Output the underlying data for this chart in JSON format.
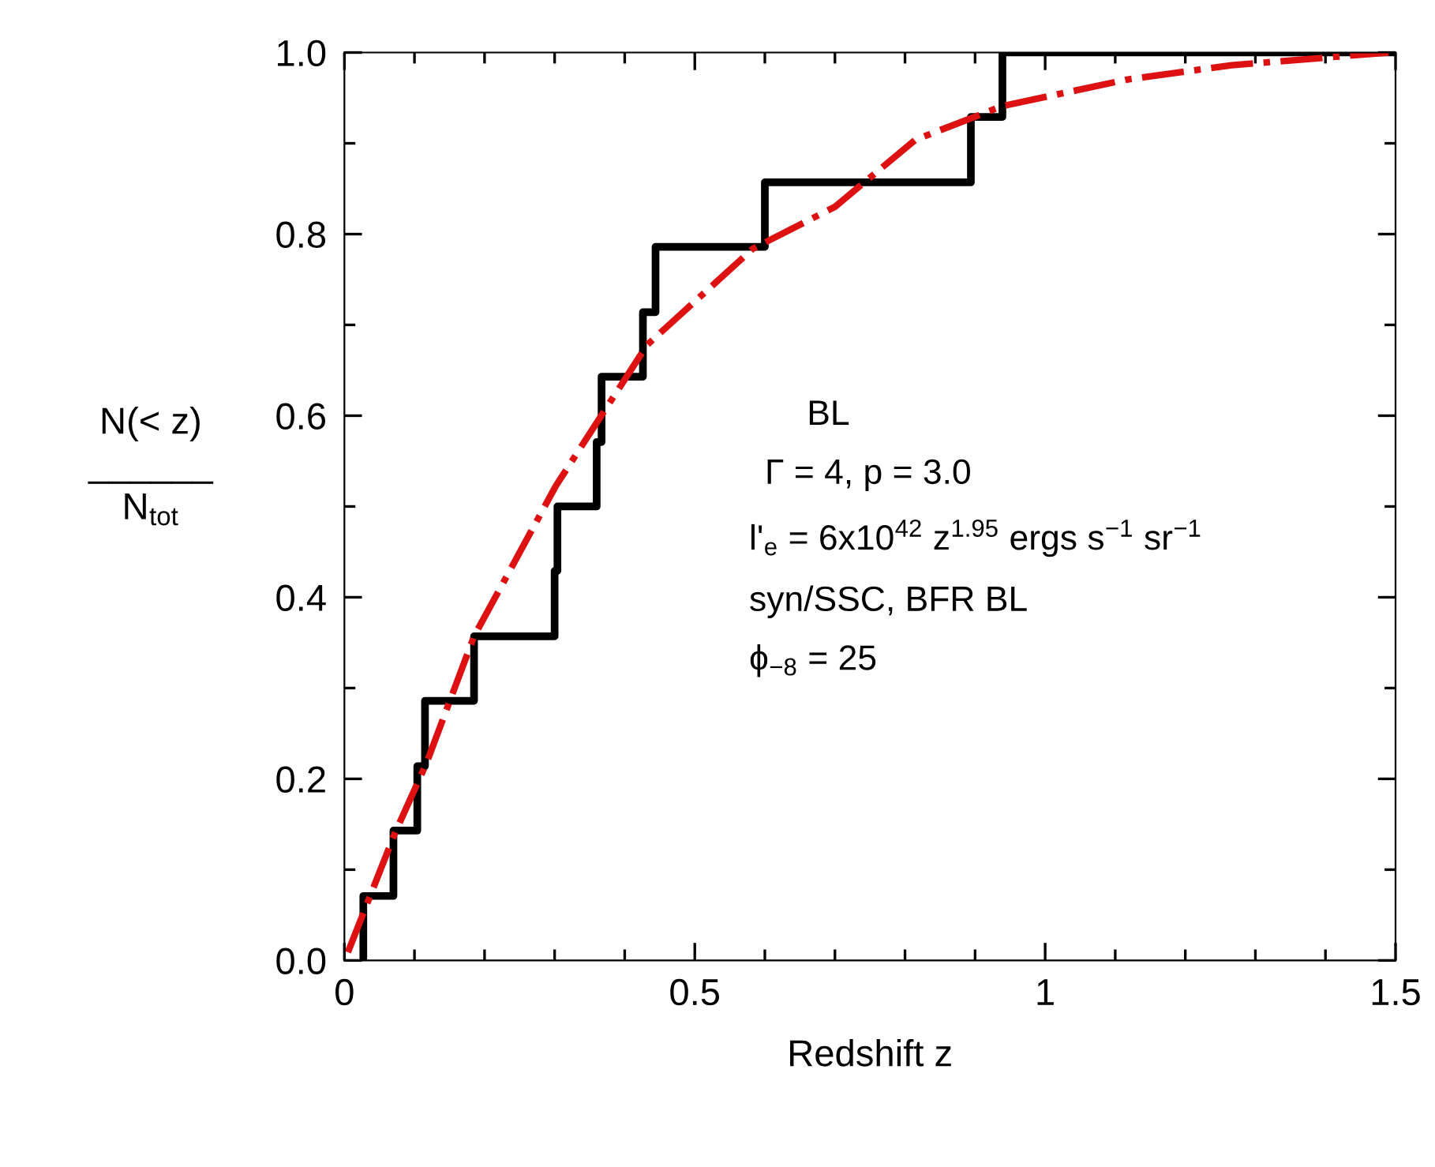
{
  "chart_data": {
    "type": "line",
    "xlabel": "Redshift z",
    "ylabel": "N(< z)\n______\nN$_{tot}$",
    "xlim": [
      0,
      1.5
    ],
    "ylim": [
      0,
      1.0
    ],
    "xticks": [
      0,
      {
        "value": 0.1,
        "label": null
      },
      {
        "value": 0.2,
        "label": null
      },
      {
        "value": 0.3,
        "label": null
      },
      {
        "value": 0.4,
        "label": null
      },
      0.5,
      {
        "value": 0.6,
        "label": null
      },
      {
        "value": 0.7,
        "label": null
      },
      {
        "value": 0.8,
        "label": null
      },
      {
        "value": 0.9,
        "label": null
      },
      1,
      {
        "value": 1.1,
        "label": null
      },
      {
        "value": 1.2,
        "label": null
      },
      {
        "value": 1.3,
        "label": null
      },
      {
        "value": 1.4,
        "label": null
      },
      1.5
    ],
    "yticks": [
      {
        "value": 0,
        "label": "0.0"
      },
      {
        "value": 0.1,
        "label": null
      },
      {
        "value": 0.2,
        "label": "0.2"
      },
      {
        "value": 0.3,
        "label": null
      },
      {
        "value": 0.4,
        "label": "0.4"
      },
      {
        "value": 0.5,
        "label": null
      },
      {
        "value": 0.6,
        "label": "0.6"
      },
      {
        "value": 0.7,
        "label": null
      },
      {
        "value": 0.8,
        "label": "0.8"
      },
      {
        "value": 0.9,
        "label": null
      },
      {
        "value": 1.0,
        "label": "1.0"
      }
    ],
    "grid": false,
    "legend": false,
    "series": [
      {
        "type": "step",
        "color": "#000000",
        "line_style": "solid",
        "x": [
          0.027,
          0.027,
          0.07,
          0.104,
          0.115,
          0.185,
          0.3,
          0.304,
          0.36,
          0.367,
          0.426,
          0.444,
          0.6,
          0.894,
          0.939,
          1.5
        ],
        "values": [
          0,
          0.071,
          0.143,
          0.214,
          0.286,
          0.357,
          0.429,
          0.5,
          0.571,
          0.643,
          0.714,
          0.786,
          0.857,
          0.929,
          1.0,
          1.0
        ]
      },
      {
        "type": "line",
        "color": "#dd1111",
        "line_style": "dashdot",
        "x": [
          0.005,
          0.072,
          0.117,
          0.185,
          0.302,
          0.432,
          0.583,
          0.7,
          0.815,
          0.939,
          1.115,
          1.266,
          1.49
        ],
        "values": [
          0.009,
          0.14,
          0.217,
          0.357,
          0.523,
          0.678,
          0.784,
          0.83,
          0.904,
          0.941,
          0.97,
          0.986,
          1.0
        ]
      }
    ],
    "annotations": [
      "BL",
      "Γ = 4, p = 3.0",
      "l'$_{e}$ = 6x10$^{42}$ z$^{1.95}$ ergs s$^{−1}$ sr$^{−1}$",
      "syn/SSC, BFR BL",
      "ϕ$_{−8}$ = 25"
    ]
  }
}
